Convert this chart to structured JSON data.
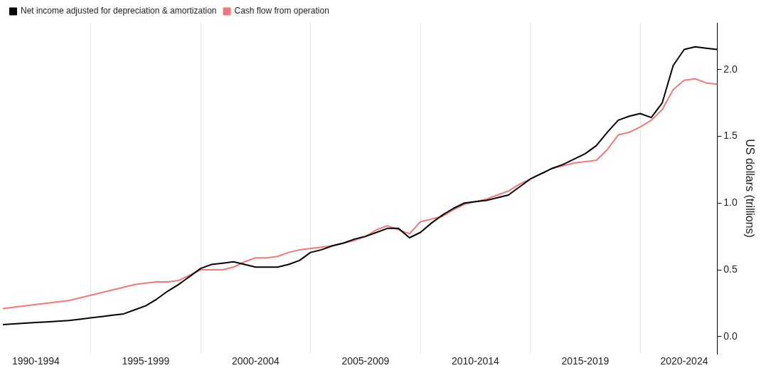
{
  "chart_data": {
    "type": "line",
    "ylabel": "US dollars (trillions)",
    "legend": "top left",
    "grid": "x",
    "ylim": [
      -0.13,
      2.35
    ],
    "yticks": [
      {
        "value": 0,
        "label": "0.0"
      },
      0.5,
      {
        "value": 1,
        "label": "1.0"
      },
      1.5,
      {
        "value": 2,
        "label": "2.0"
      }
    ],
    "categories": [
      null,
      null,
      null,
      "1990-1994",
      null,
      null,
      null,
      null,
      null,
      null,
      null,
      null,
      null,
      "1995-1999",
      null,
      null,
      null,
      null,
      null,
      null,
      null,
      null,
      null,
      "2000-2004",
      null,
      null,
      null,
      null,
      null,
      null,
      null,
      null,
      null,
      "2005-2009",
      null,
      null,
      null,
      null,
      null,
      null,
      null,
      null,
      null,
      "2010-2014",
      null,
      null,
      null,
      null,
      null,
      null,
      null,
      null,
      null,
      "2015-2019",
      null,
      null,
      null,
      null,
      null,
      null,
      null,
      null,
      "2020-2024",
      null,
      null,
      null
    ],
    "series": [
      {
        "name": "Net income adjusted for depreciation & amortization",
        "color": "#000000",
        "values": [
          0.09,
          0.095,
          0.1,
          0.105,
          0.11,
          0.115,
          0.12,
          0.13,
          0.14,
          0.15,
          0.16,
          0.17,
          0.2,
          0.23,
          0.28,
          0.34,
          0.39,
          0.45,
          0.51,
          0.54,
          0.55,
          0.56,
          0.54,
          0.52,
          0.52,
          0.52,
          0.54,
          0.57,
          0.63,
          0.65,
          0.68,
          0.7,
          0.73,
          0.75,
          0.78,
          0.81,
          0.81,
          0.74,
          0.78,
          0.85,
          0.91,
          0.96,
          1.0,
          1.01,
          1.02,
          1.04,
          1.06,
          1.12,
          1.18,
          1.22,
          1.26,
          1.29,
          1.33,
          1.37,
          1.43,
          1.53,
          1.62,
          1.65,
          1.67,
          1.64,
          1.75,
          2.03,
          2.15,
          2.17,
          2.16,
          2.15
        ]
      },
      {
        "name": "Cash flow from operation",
        "color": "#f4777a",
        "values": [
          0.21,
          0.22,
          0.23,
          0.24,
          0.25,
          0.26,
          0.27,
          0.29,
          0.31,
          0.33,
          0.35,
          0.37,
          0.39,
          0.4,
          0.41,
          0.41,
          0.42,
          0.46,
          0.5,
          0.5,
          0.5,
          0.52,
          0.56,
          0.59,
          0.59,
          0.6,
          0.63,
          0.65,
          0.66,
          0.67,
          0.68,
          0.7,
          0.72,
          0.75,
          0.8,
          0.83,
          0.8,
          0.77,
          0.86,
          0.88,
          0.9,
          0.95,
          0.99,
          1.01,
          1.03,
          1.06,
          1.09,
          1.14,
          1.18,
          1.22,
          1.26,
          1.28,
          1.3,
          1.31,
          1.32,
          1.4,
          1.51,
          1.53,
          1.57,
          1.62,
          1.7,
          1.85,
          1.92,
          1.93,
          1.9,
          1.89
        ]
      }
    ]
  }
}
